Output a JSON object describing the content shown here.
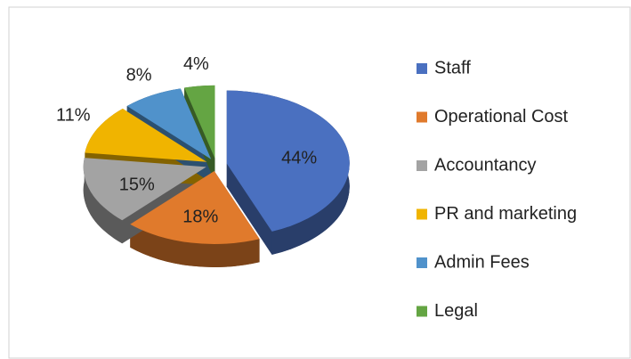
{
  "chart_data": {
    "type": "pie",
    "categories": [
      "Staff",
      "Operational Cost",
      "Accountancy",
      "PR and marketing",
      "Admin Fees",
      "Legal"
    ],
    "values": [
      44,
      18,
      15,
      11,
      8,
      4
    ],
    "value_labels": [
      "44%",
      "18%",
      "15%",
      "11%",
      "8%",
      "4%"
    ],
    "colors": [
      "#4a70c0",
      "#e07a2c",
      "#a3a3a3",
      "#f0b400",
      "#5092cb",
      "#64a543"
    ],
    "legend": "right",
    "exploded": true,
    "three_d": true
  }
}
